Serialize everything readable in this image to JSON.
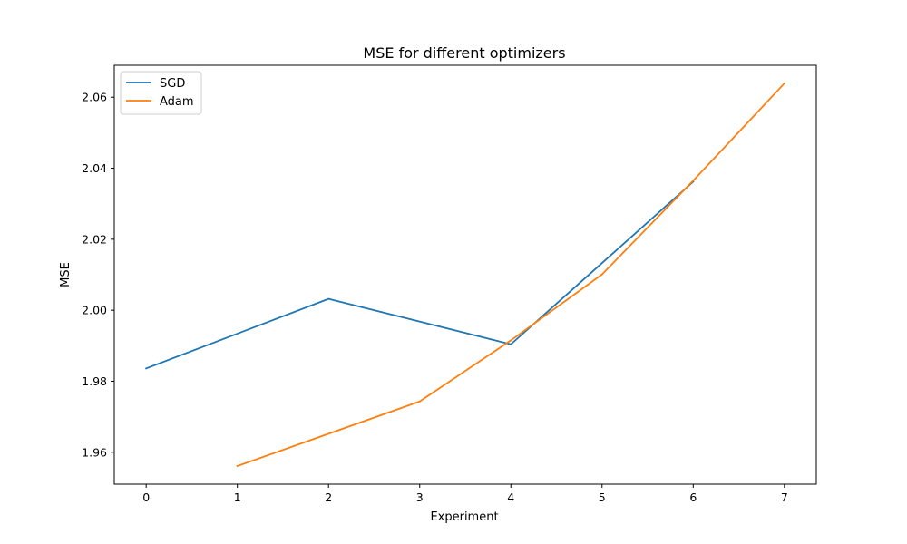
{
  "chart_data": {
    "type": "line",
    "title": "MSE for different optimizers",
    "xlabel": "Experiment",
    "ylabel": "MSE",
    "xlim": [
      -0.35,
      7.35
    ],
    "ylim": [
      1.951,
      2.069
    ],
    "xticks": [
      0,
      1,
      2,
      3,
      4,
      5,
      6,
      7
    ],
    "yticks": [
      1.96,
      1.98,
      2.0,
      2.02,
      2.04,
      2.06
    ],
    "ytick_labels": [
      "1.96",
      "1.98",
      "2.00",
      "2.02",
      "2.04",
      "2.06"
    ],
    "grid": false,
    "legend_position": "top-left",
    "series": [
      {
        "name": "SGD",
        "color": "#1f77b4",
        "x": [
          0,
          2,
          4,
          6
        ],
        "y": [
          1.9836,
          2.0032,
          1.9904,
          2.0362
        ]
      },
      {
        "name": "Adam",
        "color": "#ff7f0e",
        "x": [
          1,
          3,
          4,
          5,
          6,
          7
        ],
        "y": [
          1.9561,
          1.9743,
          1.9915,
          2.0101,
          2.0365,
          2.0639
        ]
      }
    ]
  }
}
